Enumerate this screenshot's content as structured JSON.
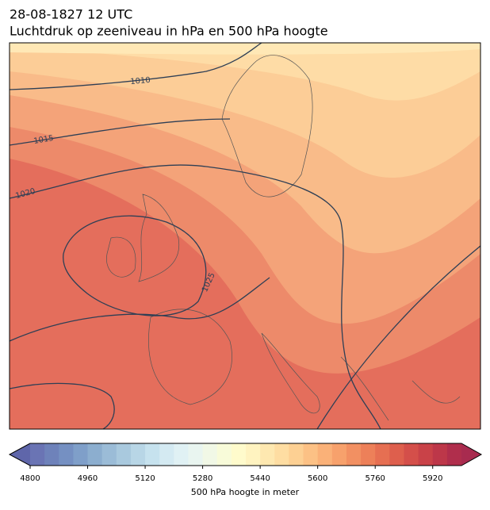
{
  "header": {
    "date": "28-08-1827 12 UTC",
    "title": "Luchtdruk op zeeniveau in hPa en 500 hPa hoogte"
  },
  "map": {
    "isobar_labels": [
      "1010",
      "1015",
      "1020",
      "1025"
    ]
  },
  "colorbar": {
    "label": "500 hPa hoogte in meter",
    "lim": [
      4800,
      6000
    ],
    "ticks": [
      4800,
      4960,
      5120,
      5280,
      5440,
      5600,
      5760,
      5920
    ],
    "under_color": "#5f66aa",
    "over_color": "#a82b4f",
    "colors": [
      "#6a74b4",
      "#6e82ba",
      "#7590c2",
      "#7f9fc9",
      "#8caecf",
      "#9bbcd7",
      "#a9c9de",
      "#b8d6e6",
      "#c6e2ee",
      "#d4eaf2",
      "#e0f1f4",
      "#e9f5f0",
      "#f1f8e6",
      "#f8fbd9",
      "#fffbcc",
      "#fff3c0",
      "#fee8b0",
      "#fedda2",
      "#fdd093",
      "#fcc185",
      "#fab178",
      "#f7a16c",
      "#f29062",
      "#ed8059",
      "#e66f52",
      "#de5f4d",
      "#d44f4a",
      "#c94248",
      "#bd3749",
      "#b02e4c"
    ]
  }
}
